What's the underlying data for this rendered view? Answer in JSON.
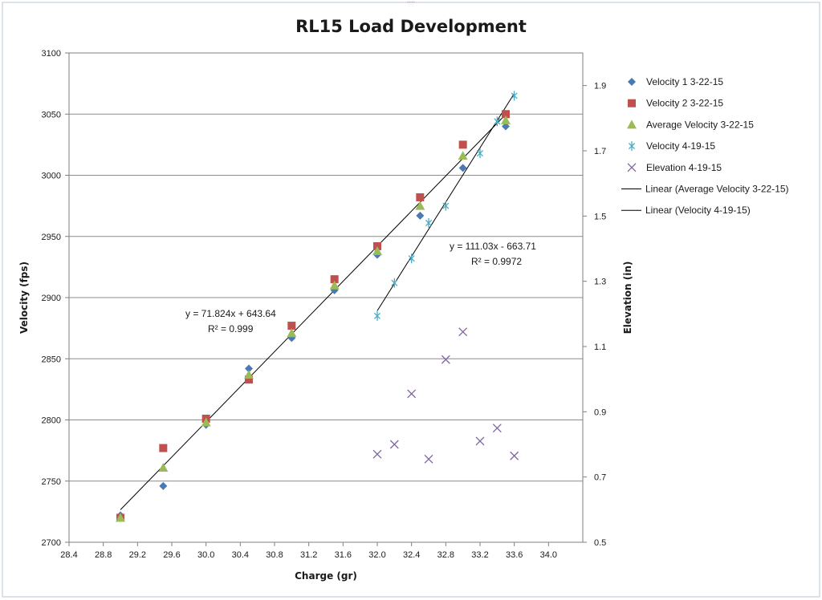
{
  "chart_data": {
    "type": "scatter",
    "title": "RL15 Load Development",
    "xlabel": "Charge (gr)",
    "ylabel": "Velocity (fps)",
    "y2label": "Elevation (in)",
    "xlim": [
      28.4,
      34.4
    ],
    "ylim": [
      2700,
      3100
    ],
    "y2lim": [
      0.5,
      2.0
    ],
    "x_ticks": [
      "28.4",
      "28.8",
      "29.2",
      "29.6",
      "30.0",
      "30.4",
      "30.8",
      "31.2",
      "31.6",
      "32.0",
      "32.4",
      "32.8",
      "33.2",
      "33.6",
      "34.0"
    ],
    "y_ticks": [
      "2700",
      "2750",
      "2800",
      "2850",
      "2900",
      "2950",
      "3000",
      "3050",
      "3100"
    ],
    "y2_ticks": [
      "0.5",
      "0.7",
      "0.9",
      "1.1",
      "1.3",
      "1.5",
      "1.7",
      "1.9"
    ],
    "grid": "horizontal major on primary axis",
    "legend_position": "right",
    "series": [
      {
        "name": "Velocity 1 3-22-15",
        "marker": "diamond",
        "color": "#4a7ab5",
        "axis": "primary",
        "points": [
          [
            29.0,
            2722
          ],
          [
            29.5,
            2746
          ],
          [
            30.0,
            2796
          ],
          [
            30.5,
            2842
          ],
          [
            31.0,
            2867
          ],
          [
            31.5,
            2906
          ],
          [
            32.0,
            2935
          ],
          [
            32.5,
            2967
          ],
          [
            33.0,
            3006
          ],
          [
            33.5,
            3040
          ]
        ]
      },
      {
        "name": "Velocity 2 3-22-15",
        "marker": "square",
        "color": "#c0504d",
        "axis": "primary",
        "points": [
          [
            29.0,
            2720
          ],
          [
            29.5,
            2777
          ],
          [
            30.0,
            2801
          ],
          [
            30.5,
            2833
          ],
          [
            31.0,
            2877
          ],
          [
            31.5,
            2915
          ],
          [
            32.0,
            2942
          ],
          [
            32.5,
            2982
          ],
          [
            33.0,
            3025
          ],
          [
            33.5,
            3050
          ]
        ]
      },
      {
        "name": "Average Velocity 3-22-15",
        "marker": "triangle",
        "color": "#9bbb59",
        "axis": "primary",
        "points": [
          [
            29.0,
            2720
          ],
          [
            29.5,
            2761
          ],
          [
            30.0,
            2798
          ],
          [
            30.5,
            2837
          ],
          [
            31.0,
            2871
          ],
          [
            31.5,
            2910
          ],
          [
            32.0,
            2938
          ],
          [
            32.5,
            2975
          ],
          [
            33.0,
            3016
          ],
          [
            33.5,
            3045
          ]
        ]
      },
      {
        "name": "Velocity 4-19-15",
        "marker": "star",
        "color": "#4bacc6",
        "axis": "primary",
        "points": [
          [
            32.0,
            2885
          ],
          [
            32.2,
            2912
          ],
          [
            32.4,
            2932
          ],
          [
            32.6,
            2961
          ],
          [
            32.8,
            2975
          ],
          [
            33.2,
            3018
          ],
          [
            33.4,
            3044
          ],
          [
            33.6,
            3065
          ]
        ]
      },
      {
        "name": "Elevation 4-19-15",
        "marker": "x",
        "color": "#8064a2",
        "axis": "secondary",
        "points": [
          [
            32.0,
            0.77
          ],
          [
            32.2,
            0.8
          ],
          [
            32.4,
            0.955
          ],
          [
            32.6,
            0.755
          ],
          [
            32.8,
            1.06
          ],
          [
            33.0,
            1.145
          ],
          [
            33.2,
            0.81
          ],
          [
            33.4,
            0.85
          ],
          [
            33.6,
            0.765
          ]
        ]
      }
    ],
    "trendlines": [
      {
        "name": "Linear (Average Velocity 3-22-15)",
        "slope": 71.824,
        "intercept": 643.64,
        "x_range": [
          29.0,
          33.5
        ],
        "eq_text": "y = 71.824x  + 643.64",
        "r2_text": "R² = 0.999"
      },
      {
        "name": "Linear (Velocity 4-19-15)",
        "slope": 111.03,
        "intercept": -663.71,
        "x_range": [
          32.0,
          33.6
        ],
        "eq_text": "y = 111.03x  - 663.71",
        "r2_text": "R² = 0.9972"
      }
    ]
  }
}
